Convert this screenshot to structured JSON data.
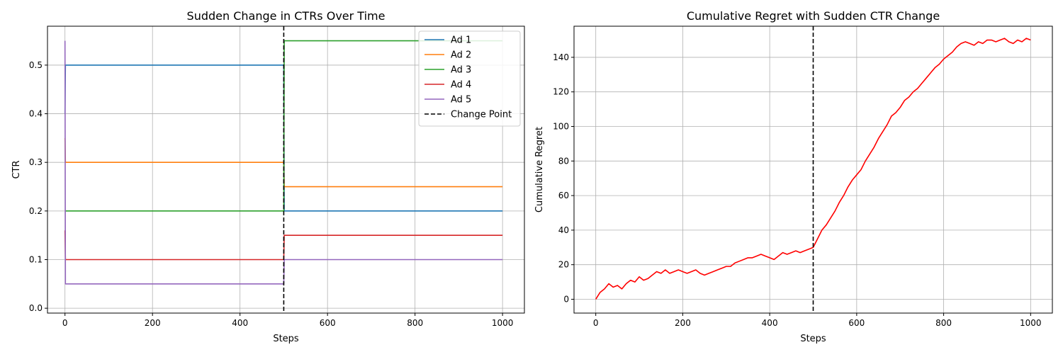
{
  "chart_data": [
    {
      "type": "line",
      "title": "Sudden Change in CTRs Over Time",
      "xlabel": "Steps",
      "ylabel": "CTR",
      "xlim": [
        -40,
        1050
      ],
      "ylim": [
        -0.01,
        0.58
      ],
      "xticks": [
        0,
        200,
        400,
        600,
        800,
        1000
      ],
      "yticks": [
        0.0,
        0.1,
        0.2,
        0.3,
        0.4,
        0.5
      ],
      "ytick_labels": [
        "0.0",
        "0.1",
        "0.2",
        "0.3",
        "0.4",
        "0.5"
      ],
      "grid": true,
      "legend_position": "top-right",
      "series": [
        {
          "name": "Ad 1",
          "color": "#1f77b4",
          "x": [
            0,
            1,
            500,
            501,
            1000
          ],
          "y": [
            0.4,
            0.5,
            0.5,
            0.2,
            0.2
          ]
        },
        {
          "name": "Ad 2",
          "color": "#ff7f0e",
          "x": [
            0,
            1,
            500,
            501,
            1000
          ],
          "y": [
            0.35,
            0.3,
            0.3,
            0.25,
            0.25
          ]
        },
        {
          "name": "Ad 3",
          "color": "#2ca02c",
          "x": [
            0,
            1,
            500,
            501,
            1000
          ],
          "y": [
            0.2,
            0.2,
            0.2,
            0.55,
            0.55
          ]
        },
        {
          "name": "Ad 4",
          "color": "#d62728",
          "x": [
            0,
            1,
            500,
            501,
            1000
          ],
          "y": [
            0.16,
            0.1,
            0.1,
            0.15,
            0.15
          ]
        },
        {
          "name": "Ad 5",
          "color": "#9467bd",
          "x": [
            0,
            1,
            500,
            501,
            1000
          ],
          "y": [
            0.55,
            0.05,
            0.05,
            0.1,
            0.1
          ]
        }
      ],
      "vline": {
        "name": "Change Point",
        "x": 500,
        "color": "#000000",
        "style": "dashed"
      }
    },
    {
      "type": "line",
      "title": "Cumulative Regret with Sudden CTR Change",
      "xlabel": "Steps",
      "ylabel": "Cumulative Regret",
      "xlim": [
        -50,
        1050
      ],
      "ylim": [
        -8,
        158
      ],
      "xticks": [
        0,
        200,
        400,
        600,
        800,
        1000
      ],
      "yticks": [
        0,
        20,
        40,
        60,
        80,
        100,
        120,
        140
      ],
      "grid": true,
      "series": [
        {
          "color": "#ff0000",
          "x": [
            0,
            10,
            20,
            30,
            40,
            50,
            60,
            70,
            80,
            90,
            100,
            110,
            120,
            130,
            140,
            150,
            160,
            170,
            180,
            190,
            200,
            210,
            220,
            230,
            240,
            250,
            260,
            270,
            280,
            290,
            300,
            310,
            320,
            330,
            340,
            350,
            360,
            370,
            380,
            390,
            400,
            410,
            420,
            430,
            440,
            450,
            460,
            470,
            480,
            490,
            500,
            510,
            520,
            530,
            540,
            550,
            560,
            570,
            580,
            590,
            600,
            610,
            620,
            630,
            640,
            650,
            660,
            670,
            680,
            690,
            700,
            710,
            720,
            730,
            740,
            750,
            760,
            770,
            780,
            790,
            800,
            810,
            820,
            830,
            840,
            850,
            860,
            870,
            880,
            890,
            900,
            910,
            920,
            930,
            940,
            950,
            960,
            970,
            980,
            990,
            1000
          ],
          "y": [
            0,
            4,
            6,
            9,
            7,
            8,
            6,
            9,
            11,
            10,
            13,
            11,
            12,
            14,
            16,
            15,
            17,
            15,
            16,
            17,
            16,
            15,
            16,
            17,
            15,
            14,
            15,
            16,
            17,
            18,
            19,
            19,
            21,
            22,
            23,
            24,
            24,
            25,
            26,
            25,
            24,
            23,
            25,
            27,
            26,
            27,
            28,
            27,
            28,
            29,
            30,
            35,
            40,
            43,
            47,
            51,
            56,
            60,
            65,
            69,
            72,
            75,
            80,
            84,
            88,
            93,
            97,
            101,
            106,
            108,
            111,
            115,
            117,
            120,
            122,
            125,
            128,
            131,
            134,
            136,
            139,
            141,
            143,
            146,
            148,
            149,
            148,
            147,
            149,
            148,
            150,
            150,
            149,
            150,
            151,
            149,
            148,
            150,
            149,
            151,
            150
          ]
        }
      ],
      "vline": {
        "x": 500,
        "color": "#000000",
        "style": "dashed"
      }
    }
  ]
}
